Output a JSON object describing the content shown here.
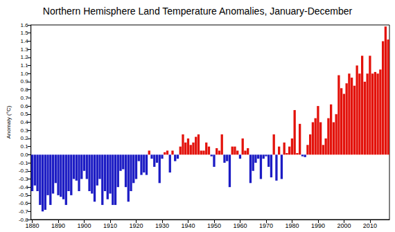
{
  "chart_data": {
    "type": "bar",
    "title": "Northern Hemisphere Land Temperature Anomalies, January-December",
    "y_label": "Anomaly (°C)",
    "categories": [
      "1880",
      null,
      null,
      null,
      null,
      null,
      null,
      null,
      null,
      null,
      "1890",
      null,
      null,
      null,
      null,
      null,
      null,
      null,
      null,
      null,
      "1900",
      null,
      null,
      null,
      null,
      null,
      null,
      null,
      null,
      null,
      "1910",
      null,
      null,
      null,
      null,
      null,
      null,
      null,
      null,
      null,
      "1920",
      null,
      null,
      null,
      null,
      null,
      null,
      null,
      null,
      null,
      "1930",
      null,
      null,
      null,
      null,
      null,
      null,
      null,
      null,
      null,
      "1940",
      null,
      null,
      null,
      null,
      null,
      null,
      null,
      null,
      null,
      "1950",
      null,
      null,
      null,
      null,
      null,
      null,
      null,
      null,
      null,
      "1960",
      null,
      null,
      null,
      null,
      null,
      null,
      null,
      null,
      null,
      "1970",
      null,
      null,
      null,
      null,
      null,
      null,
      null,
      null,
      null,
      "1980",
      null,
      null,
      null,
      null,
      null,
      null,
      null,
      null,
      null,
      "1990",
      null,
      null,
      null,
      null,
      null,
      null,
      null,
      null,
      null,
      "2000",
      null,
      null,
      null,
      null,
      null,
      null,
      null,
      null,
      null,
      "2010",
      null,
      null,
      null,
      null,
      null,
      null,
      null
    ],
    "values": [
      -0.45,
      -0.38,
      -0.45,
      -0.62,
      -0.7,
      -0.68,
      -0.5,
      -0.62,
      -0.48,
      -0.35,
      -0.5,
      -0.52,
      -0.55,
      -0.62,
      -0.45,
      -0.5,
      -0.3,
      -0.32,
      -0.45,
      -0.3,
      -0.2,
      -0.3,
      -0.45,
      -0.48,
      -0.58,
      -0.38,
      -0.3,
      -0.62,
      -0.45,
      -0.55,
      -0.48,
      -0.62,
      -0.62,
      -0.4,
      -0.2,
      -0.18,
      -0.4,
      -0.58,
      -0.45,
      -0.35,
      -0.3,
      -0.08,
      -0.25,
      -0.22,
      -0.25,
      0.05,
      -0.05,
      -0.15,
      -0.1,
      -0.35,
      -0.05,
      0.03,
      0.05,
      -0.22,
      0.05,
      -0.08,
      -0.05,
      0.1,
      0.25,
      0.15,
      0.2,
      0.12,
      0.15,
      0.22,
      0.25,
      0.05,
      0.05,
      0.15,
      0.1,
      -0.02,
      -0.15,
      0.08,
      0.05,
      0.25,
      -0.1,
      -0.08,
      -0.4,
      0.1,
      0.1,
      0.05,
      -0.05,
      0.2,
      0.05,
      0.08,
      -0.35,
      -0.2,
      -0.1,
      -0.05,
      -0.3,
      -0.05,
      -0.02,
      -0.15,
      -0.28,
      0.25,
      -0.32,
      0.1,
      -0.3,
      0.15,
      0.02,
      0.1,
      0.2,
      0.55,
      0.02,
      0.38,
      -0.02,
      -0.03,
      0.12,
      0.25,
      0.4,
      0.45,
      0.6,
      0.4,
      0.12,
      0.2,
      0.45,
      0.62,
      0.4,
      0.5,
      0.98,
      0.82,
      0.75,
      0.88,
      1.0,
      0.95,
      0.85,
      1.1,
      1.0,
      1.22,
      0.9,
      1.0,
      1.22,
      1.0,
      1.02,
      1.0,
      1.05,
      1.4,
      1.58,
      1.42
    ],
    "colors": [
      "#1c1cc4",
      "#1c1cc4",
      "#1c1cc4",
      "#1c1cc4",
      "#1c1cc4",
      "#1c1cc4",
      "#1c1cc4",
      "#1c1cc4",
      "#1c1cc4",
      "#1c1cc4",
      "#1c1cc4",
      "#1c1cc4",
      "#1c1cc4",
      "#1c1cc4",
      "#1c1cc4",
      "#1c1cc4",
      "#1c1cc4",
      "#1c1cc4",
      "#1c1cc4",
      "#1c1cc4",
      "#1c1cc4",
      "#1c1cc4",
      "#1c1cc4",
      "#1c1cc4",
      "#1c1cc4",
      "#1c1cc4",
      "#1c1cc4",
      "#1c1cc4",
      "#1c1cc4",
      "#1c1cc4",
      "#1c1cc4",
      "#1c1cc4",
      "#1c1cc4",
      "#1c1cc4",
      "#1c1cc4",
      "#1c1cc4",
      "#1c1cc4",
      "#1c1cc4",
      "#1c1cc4",
      "#1c1cc4",
      "#1c1cc4",
      "#1c1cc4",
      "#1c1cc4",
      "#1c1cc4",
      "#1c1cc4",
      "#e3120b",
      "#1c1cc4",
      "#1c1cc4",
      "#1c1cc4",
      "#1c1cc4",
      "#1c1cc4",
      "#e3120b",
      "#e3120b",
      "#1c1cc4",
      "#e3120b",
      "#1c1cc4",
      "#1c1cc4",
      "#e3120b",
      "#e3120b",
      "#e3120b",
      "#e3120b",
      "#e3120b",
      "#e3120b",
      "#e3120b",
      "#e3120b",
      "#e3120b",
      "#e3120b",
      "#e3120b",
      "#e3120b",
      "#1c1cc4",
      "#1c1cc4",
      "#e3120b",
      "#e3120b",
      "#e3120b",
      "#1c1cc4",
      "#1c1cc4",
      "#1c1cc4",
      "#e3120b",
      "#e3120b",
      "#e3120b",
      "#1c1cc4",
      "#e3120b",
      "#e3120b",
      "#e3120b",
      "#1c1cc4",
      "#1c1cc4",
      "#1c1cc4",
      "#1c1cc4",
      "#1c1cc4",
      "#1c1cc4",
      "#1c1cc4",
      "#1c1cc4",
      "#1c1cc4",
      "#e3120b",
      "#1c1cc4",
      "#e3120b",
      "#1c1cc4",
      "#e3120b",
      "#e3120b",
      "#e3120b",
      "#e3120b",
      "#e3120b",
      "#e3120b",
      "#e3120b",
      "#1c1cc4",
      "#1c1cc4",
      "#e3120b",
      "#e3120b",
      "#e3120b",
      "#e3120b",
      "#e3120b",
      "#e3120b",
      "#e3120b",
      "#e3120b",
      "#e3120b",
      "#e3120b",
      "#e3120b",
      "#e3120b",
      "#e3120b",
      "#e3120b",
      "#e3120b",
      "#e3120b",
      "#e3120b",
      "#e3120b",
      "#e3120b",
      "#e3120b",
      "#e3120b",
      "#e3120b",
      "#e3120b",
      "#e3120b",
      "#e3120b",
      "#e3120b",
      "#e3120b",
      "#e3120b",
      "#e3120b",
      "#e3120b",
      "#e3120b",
      "#e3120b"
    ],
    "ylim": [
      -0.8,
      1.6
    ],
    "yticks": [
      -0.8,
      -0.7,
      -0.6,
      -0.5,
      -0.4,
      -0.3,
      -0.2,
      -0.1,
      {
        "value": 0,
        "label": "0.0"
      },
      0.1,
      0.2,
      0.3,
      0.4,
      0.5,
      0.6,
      0.7,
      0.8,
      0.9,
      {
        "value": 1,
        "label": "1.0"
      },
      1.1,
      1.2,
      1.3,
      1.4,
      1.5,
      1.6
    ],
    "grid": false
  }
}
